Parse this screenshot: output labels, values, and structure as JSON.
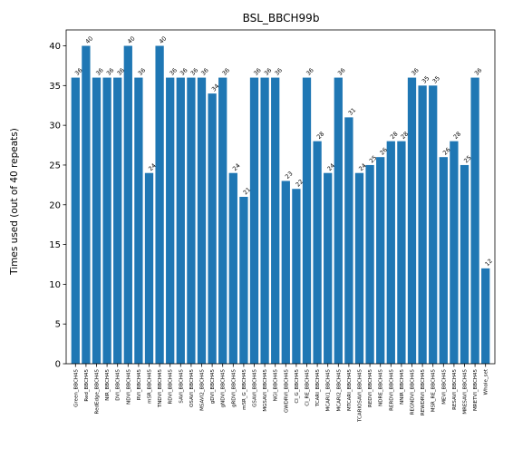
{
  "chart_data": {
    "type": "bar",
    "title": "BSL_BBCH99b",
    "xlabel": "",
    "ylabel": "Times used (out of 40 repeats)",
    "ylim": [
      0,
      42
    ],
    "yticks": [
      0,
      5,
      10,
      15,
      20,
      25,
      30,
      35,
      40
    ],
    "grid": false,
    "bar_color": "#1f77b4",
    "categories": [
      "Green_BBCH45",
      "Red_BBCH45",
      "RedEdge_BBCH45",
      "NIR_BBCH45",
      "DVI_BBCH45",
      "NDVI_BBCH45",
      "RVI_BBCH45",
      "mSR_BBCH45",
      "TNDVI_BBCH45",
      "RDVI_BBCH45",
      "SAVI_BBCH45",
      "OSAVI_BBCH45",
      "MSAVI2_BBCH45",
      "gDVI_BBCH45",
      "gNDVI_BBCH45",
      "gRDVI_BBCH45",
      "mSR_G_BBCH45",
      "GSAVI_BBCH45",
      "MGSAVI_BBCH45",
      "NGI_BBCH45",
      "GWDRVI_BBCH45",
      "CI_G_BBCH45",
      "CI_RE_BBCH45",
      "TCARI_BBCH45",
      "MCARI1_BBCH45",
      "MCARI2_BBCH45",
      "MTCARI_BBCH45",
      "TCARIOSAVI_BBCH45",
      "REDVI_BBCH45",
      "NDRE_BBCH45",
      "RERDVI_BBCH45",
      "NNIR_BBCH45",
      "REGNDVI_BBCH45",
      "REWDRVI_BBCH45",
      "MSR_RE_BBCH45",
      "MEVI_BBCH45",
      "RESAVI_BBCH45",
      "MRESAVI_BBCH45",
      "MRETVI_BBCH45",
      "Whole_set"
    ],
    "values": [
      36,
      40,
      36,
      36,
      36,
      40,
      36,
      24,
      40,
      36,
      36,
      36,
      36,
      34,
      36,
      24,
      21,
      36,
      36,
      36,
      23,
      22,
      36,
      28,
      24,
      36,
      31,
      24,
      25,
      26,
      28,
      28,
      36,
      35,
      35,
      26,
      28,
      25,
      36,
      12
    ],
    "data_labels": [
      "36",
      "40",
      "36",
      "36",
      "36",
      "40",
      "36",
      "24",
      "40",
      "36",
      "36",
      "36",
      "36",
      "34",
      "36",
      "24",
      "21",
      "36",
      "36",
      "36",
      "23",
      "22",
      "36",
      "28",
      "24",
      "36",
      "31",
      "24",
      "25",
      "26",
      "28",
      "28",
      "36",
      "35",
      "35",
      "26",
      "28",
      "25",
      "36",
      "12"
    ]
  }
}
